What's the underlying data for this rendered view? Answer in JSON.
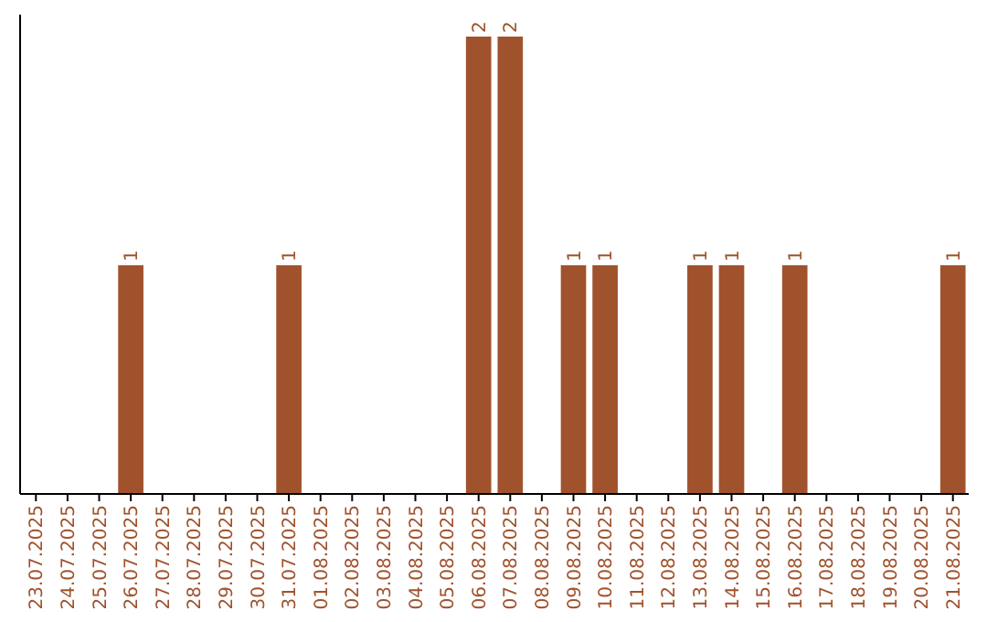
{
  "chart_data": {
    "type": "bar",
    "categories": [
      "23.07.2025",
      "24.07.2025",
      "25.07.2025",
      "26.07.2025",
      "27.07.2025",
      "28.07.2025",
      "29.07.2025",
      "30.07.2025",
      "31.07.2025",
      "01.08.2025",
      "02.08.2025",
      "03.08.2025",
      "04.08.2025",
      "05.08.2025",
      "06.08.2025",
      "07.08.2025",
      "08.08.2025",
      "09.08.2025",
      "10.08.2025",
      "11.08.2025",
      "12.08.2025",
      "13.08.2025",
      "14.08.2025",
      "15.08.2025",
      "16.08.2025",
      "17.08.2025",
      "18.08.2025",
      "19.08.2025",
      "20.08.2025",
      "21.08.2025"
    ],
    "values": [
      0,
      0,
      0,
      1,
      0,
      0,
      0,
      0,
      1,
      0,
      0,
      0,
      0,
      0,
      2,
      2,
      0,
      1,
      1,
      0,
      0,
      1,
      1,
      0,
      1,
      0,
      0,
      0,
      0,
      1
    ],
    "value_labels": [
      null,
      null,
      null,
      "1",
      null,
      null,
      null,
      null,
      "1",
      null,
      null,
      null,
      null,
      null,
      "2",
      "2",
      null,
      "1",
      "1",
      null,
      null,
      "1",
      "1",
      null,
      "1",
      null,
      null,
      null,
      null,
      "1"
    ],
    "color": "#a0522d"
  }
}
